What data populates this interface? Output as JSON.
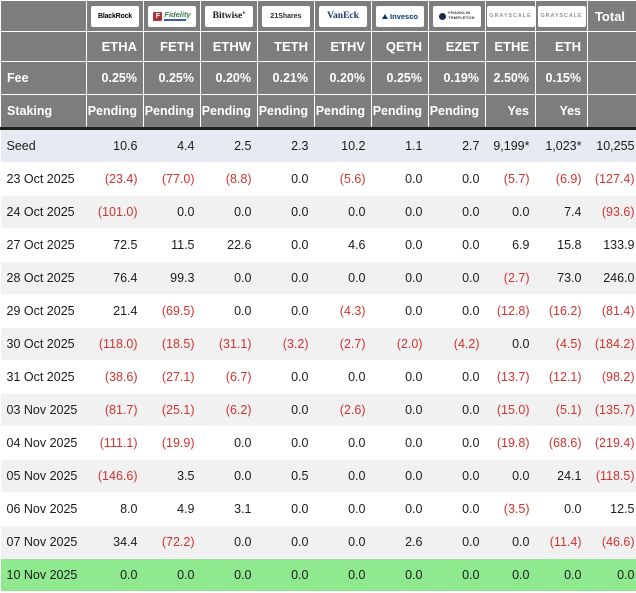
{
  "header": {
    "total_label": "Total",
    "fee_label": "Fee",
    "staking_label": "Staking",
    "providers": [
      {
        "id": "blackrock",
        "name": "BlackRock",
        "ticker": "ETHA",
        "fee": "0.25%",
        "staking": "Pending"
      },
      {
        "id": "fidelity",
        "name": "Fidelity",
        "icon_letter": "F",
        "ticker": "FETH",
        "fee": "0.25%",
        "staking": "Pending"
      },
      {
        "id": "bitwise",
        "name": "Bitwise’",
        "ticker": "ETHW",
        "fee": "0.20%",
        "staking": "Pending"
      },
      {
        "id": "21shares",
        "name": "21Shares",
        "ticker": "TETH",
        "fee": "0.21%",
        "staking": "Pending"
      },
      {
        "id": "vaneck",
        "name": "VanEck",
        "ticker": "ETHV",
        "fee": "0.20%",
        "staking": "Pending"
      },
      {
        "id": "invesco",
        "name": "Invesco",
        "ticker": "QETH",
        "fee": "0.25%",
        "staking": "Pending"
      },
      {
        "id": "franklin",
        "name": "Franklin Templeton",
        "lines": [
          "FRANKLIN",
          "TEMPLETON"
        ],
        "ticker": "EZET",
        "fee": "0.19%",
        "staking": "Pending"
      },
      {
        "id": "grayscale",
        "name": "GRAYSCALE",
        "ticker": "ETHE",
        "fee": "2.50%",
        "staking": "Yes"
      },
      {
        "id": "grayscale2",
        "name": "GRAYSCALE",
        "ticker": "ETH",
        "fee": "0.15%",
        "staking": "Yes"
      }
    ]
  },
  "rows": [
    {
      "label": "Seed",
      "type": "seed",
      "values": [
        "10.6",
        "4.4",
        "2.5",
        "2.3",
        "10.2",
        "1.1",
        "2.7",
        "9,199*",
        "1,023*",
        "10,255"
      ]
    },
    {
      "label": "23 Oct 2025",
      "values": [
        "(23.4)",
        "(77.0)",
        "(8.8)",
        "0.0",
        "(5.6)",
        "0.0",
        "0.0",
        "(5.7)",
        "(6.9)",
        "(127.4)"
      ]
    },
    {
      "label": "24 Oct 2025",
      "values": [
        "(101.0)",
        "0.0",
        "0.0",
        "0.0",
        "0.0",
        "0.0",
        "0.0",
        "0.0",
        "7.4",
        "(93.6)"
      ]
    },
    {
      "label": "27 Oct 2025",
      "values": [
        "72.5",
        "11.5",
        "22.6",
        "0.0",
        "4.6",
        "0.0",
        "0.0",
        "6.9",
        "15.8",
        "133.9"
      ]
    },
    {
      "label": "28 Oct 2025",
      "values": [
        "76.4",
        "99.3",
        "0.0",
        "0.0",
        "0.0",
        "0.0",
        "0.0",
        "(2.7)",
        "73.0",
        "246.0"
      ]
    },
    {
      "label": "29 Oct 2025",
      "values": [
        "21.4",
        "(69.5)",
        "0.0",
        "0.0",
        "(4.3)",
        "0.0",
        "0.0",
        "(12.8)",
        "(16.2)",
        "(81.4)"
      ]
    },
    {
      "label": "30 Oct 2025",
      "values": [
        "(118.0)",
        "(18.5)",
        "(31.1)",
        "(3.2)",
        "(2.7)",
        "(2.0)",
        "(4.2)",
        "0.0",
        "(4.5)",
        "(184.2)"
      ]
    },
    {
      "label": "31 Oct 2025",
      "values": [
        "(38.6)",
        "(27.1)",
        "(6.7)",
        "0.0",
        "0.0",
        "0.0",
        "0.0",
        "(13.7)",
        "(12.1)",
        "(98.2)"
      ]
    },
    {
      "label": "03 Nov 2025",
      "values": [
        "(81.7)",
        "(25.1)",
        "(6.2)",
        "0.0",
        "(2.6)",
        "0.0",
        "0.0",
        "(15.0)",
        "(5.1)",
        "(135.7)"
      ]
    },
    {
      "label": "04 Nov 2025",
      "values": [
        "(111.1)",
        "(19.9)",
        "0.0",
        "0.0",
        "0.0",
        "0.0",
        "0.0",
        "(19.8)",
        "(68.6)",
        "(219.4)"
      ]
    },
    {
      "label": "05 Nov 2025",
      "values": [
        "(146.6)",
        "3.5",
        "0.0",
        "0.5",
        "0.0",
        "0.0",
        "0.0",
        "0.0",
        "24.1",
        "(118.5)"
      ]
    },
    {
      "label": "06 Nov 2025",
      "values": [
        "8.0",
        "4.9",
        "3.1",
        "0.0",
        "0.0",
        "0.0",
        "0.0",
        "(3.5)",
        "0.0",
        "12.5"
      ]
    },
    {
      "label": "07 Nov 2025",
      "values": [
        "34.4",
        "(72.2)",
        "0.0",
        "0.0",
        "0.0",
        "2.6",
        "0.0",
        "0.0",
        "(11.4)",
        "(46.6)"
      ]
    },
    {
      "label": "10 Nov 2025",
      "type": "green",
      "values": [
        "0.0",
        "0.0",
        "0.0",
        "0.0",
        "0.0",
        "0.0",
        "0.0",
        "0.0",
        "0.0",
        "0.0"
      ]
    }
  ],
  "colors": {
    "header_bg": "#7d7d7d",
    "seed_row_bg": "#e8eaf3",
    "alt_row_bg": "#f1f1f1",
    "closed_row_bg": "#8fe98f",
    "negative_text": "#cf3430"
  }
}
